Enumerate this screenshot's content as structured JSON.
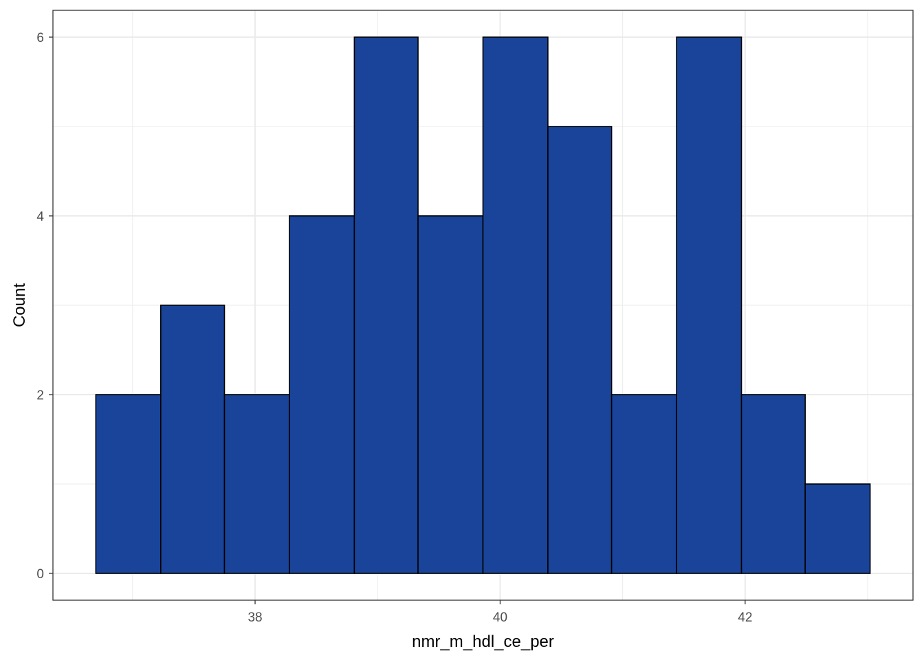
{
  "chart_data": {
    "type": "bar",
    "subtype": "histogram",
    "title": "",
    "xlabel": "nmr_m_hdl_ce_per",
    "ylabel": "Count",
    "bins": [
      {
        "start": 36.7,
        "end": 37.23,
        "count": 2
      },
      {
        "start": 37.23,
        "end": 37.75,
        "count": 3
      },
      {
        "start": 37.75,
        "end": 38.28,
        "count": 2
      },
      {
        "start": 38.28,
        "end": 38.81,
        "count": 4
      },
      {
        "start": 38.81,
        "end": 39.33,
        "count": 6
      },
      {
        "start": 39.33,
        "end": 39.86,
        "count": 4
      },
      {
        "start": 39.86,
        "end": 40.39,
        "count": 6
      },
      {
        "start": 40.39,
        "end": 40.91,
        "count": 5
      },
      {
        "start": 40.91,
        "end": 41.44,
        "count": 2
      },
      {
        "start": 41.44,
        "end": 41.97,
        "count": 6
      },
      {
        "start": 41.97,
        "end": 42.49,
        "count": 2
      },
      {
        "start": 42.49,
        "end": 43.02,
        "count": 1
      }
    ],
    "xlim": [
      36.35,
      43.37
    ],
    "ylim": [
      -0.3,
      6.3
    ],
    "x_ticks": [
      38,
      40,
      42
    ],
    "x_tick_labels": [
      "38",
      "40",
      "42"
    ],
    "x_minor_ticks": [
      37,
      39,
      41,
      43
    ],
    "y_ticks": [
      0,
      2,
      4,
      6
    ],
    "y_tick_labels": [
      "0",
      "2",
      "4",
      "6"
    ],
    "y_minor_ticks": [
      1,
      3,
      5
    ],
    "grid": true,
    "legend": "none",
    "colors": {
      "bar_fill": "#19449A",
      "bar_stroke": "#000000",
      "grid": "#EBEBEB",
      "panel_border": "#333333",
      "tick_text": "#4D4D4D",
      "axis_title": "#000000",
      "background": "#FFFFFF"
    }
  }
}
